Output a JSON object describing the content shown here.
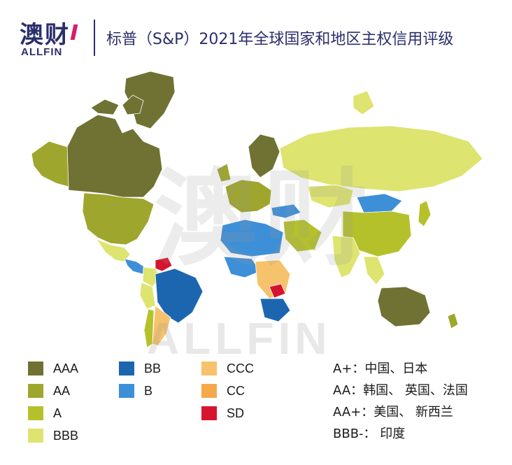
{
  "header": {
    "logo_cn": "澳财",
    "logo_en": "ALLFIN",
    "title": "标普（S&P）2021年全球国家和地区主权信用评级"
  },
  "watermark": {
    "cn": "澳财",
    "en": "ALLFIN"
  },
  "colors": {
    "AAA": "#6f7232",
    "AA": "#9ea62d",
    "A": "#b5c12b",
    "BBB": "#dde46f",
    "BB": "#1c66b0",
    "B": "#3d8fd7",
    "CCC": "#f6c26b",
    "CC": "#f4a94b",
    "SD": "#d7142f",
    "no_rating": "#e2e2e4"
  },
  "legend": [
    {
      "label": "AAA",
      "color": "#6f7232"
    },
    {
      "label": "AA",
      "color": "#9ea62d"
    },
    {
      "label": "A",
      "color": "#b5c12b"
    },
    {
      "label": "BBB",
      "color": "#dde46f"
    },
    {
      "label": "BB",
      "color": "#1c66b0"
    },
    {
      "label": "B",
      "color": "#3d8fd7"
    },
    {
      "label": "CCC",
      "color": "#f6c26b"
    },
    {
      "label": "CC",
      "color": "#f4a94b"
    },
    {
      "label": "SD",
      "color": "#d7142f"
    }
  ],
  "notes": [
    "A+：中国、日本",
    "AA：韩国、 英国、法国",
    "AA+：美国、 新西兰",
    "BBB-：  印度"
  ],
  "regions": [
    {
      "name": "Canada",
      "rating": "AAA"
    },
    {
      "name": "United States",
      "rating": "AA"
    },
    {
      "name": "Alaska",
      "rating": "AA"
    },
    {
      "name": "Greenland",
      "rating": "AAA"
    },
    {
      "name": "Mexico",
      "rating": "BBB"
    },
    {
      "name": "Central America",
      "rating": "B"
    },
    {
      "name": "Venezuela",
      "rating": "SD"
    },
    {
      "name": "Colombia",
      "rating": "BBB"
    },
    {
      "name": "Brazil",
      "rating": "BB"
    },
    {
      "name": "Argentina",
      "rating": "CCC"
    },
    {
      "name": "Chile",
      "rating": "A"
    },
    {
      "name": "Peru",
      "rating": "BBB"
    },
    {
      "name": "Scandinavia",
      "rating": "AAA"
    },
    {
      "name": "Western Europe",
      "rating": "AA"
    },
    {
      "name": "Russia",
      "rating": "BBB"
    },
    {
      "name": "Turkey",
      "rating": "B"
    },
    {
      "name": "Middle East",
      "rating": "A"
    },
    {
      "name": "Kazakhstan",
      "rating": "BBB"
    },
    {
      "name": "Mongolia",
      "rating": "B"
    },
    {
      "name": "China",
      "rating": "A"
    },
    {
      "name": "India",
      "rating": "BBB"
    },
    {
      "name": "Southeast Asia",
      "rating": "BBB"
    },
    {
      "name": "Japan",
      "rating": "A"
    },
    {
      "name": "North Africa",
      "rating": "B"
    },
    {
      "name": "West Africa",
      "rating": "B"
    },
    {
      "name": "Central Africa",
      "rating": "CCC"
    },
    {
      "name": "Zambia",
      "rating": "SD"
    },
    {
      "name": "Southern Africa",
      "rating": "BB"
    },
    {
      "name": "Australia",
      "rating": "AAA"
    },
    {
      "name": "New Zealand",
      "rating": "AA"
    },
    {
      "name": "Indonesia",
      "rating": "BBB"
    }
  ]
}
